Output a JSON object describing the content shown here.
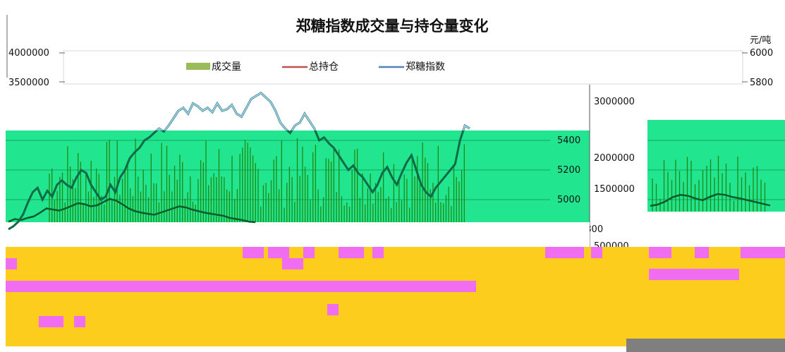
{
  "chart_data": [
    {
      "type": "bar",
      "title": "郑糖指数成交量与持仓量变化",
      "right_unit": "元/吨",
      "left_axis_ticks": [
        "4000000",
        "3500000"
      ],
      "right_axis_ticks": [
        "6000",
        "5800"
      ],
      "legend": {
        "placement": "top-center",
        "entries": [
          {
            "label": "成交量",
            "color": "#9bbb59"
          },
          {
            "label": "总持仓",
            "color": "#c0504d"
          },
          {
            "label": "郑糖指数",
            "color": "#4f81bd"
          }
        ]
      },
      "series": [
        {
          "name": "成交量",
          "color": "#9bbb59"
        },
        {
          "name": "总持仓",
          "color": "#c0504d"
        },
        {
          "name": "郑糖指数",
          "color": "#4f81bd"
        }
      ]
    },
    {
      "type": "line",
      "middle_axis_ticks": [
        "5400",
        "5200",
        "5000",
        "4800"
      ],
      "inset_axis_ticks": [
        "3000000",
        "2000000",
        "1500000",
        "500000"
      ],
      "index_series": {
        "name": "郑糖指数",
        "values": [
          4800,
          4820,
          4850,
          4900,
          4980,
          5050,
          5080,
          5000,
          5060,
          5020,
          5100,
          5130,
          5100,
          5080,
          5150,
          5200,
          5180,
          5100,
          5050,
          5000,
          5020,
          5100,
          5050,
          5150,
          5200,
          5280,
          5320,
          5350,
          5400,
          5420,
          5450,
          5480,
          5460,
          5500,
          5550,
          5600,
          5620,
          5580,
          5650,
          5630,
          5600,
          5620,
          5590,
          5650,
          5600,
          5610,
          5640,
          5580,
          5560,
          5620,
          5680,
          5700,
          5720,
          5690,
          5660,
          5600,
          5520,
          5480,
          5450,
          5500,
          5520,
          5580,
          5530,
          5480,
          5400,
          5420,
          5380,
          5350,
          5300,
          5250,
          5200,
          5230,
          5180,
          5150,
          5100,
          5050,
          5100,
          5180,
          5220,
          5150,
          5100,
          5180,
          5250,
          5300,
          5200,
          5100,
          5050,
          5020,
          5080,
          5120,
          5160,
          5200,
          5240,
          5400,
          5500,
          5480
        ]
      },
      "oi_series": {
        "name": "总持仓",
        "values": [
          650000,
          700000,
          680000,
          720000,
          750000,
          820000,
          900000,
          880000,
          860000,
          900000,
          950000,
          1000000,
          980000,
          940000,
          960000,
          1020000,
          1080000,
          1050000,
          980000,
          900000,
          850000,
          820000,
          800000,
          780000,
          820000,
          860000,
          900000,
          940000,
          920000,
          880000,
          850000,
          820000,
          800000,
          780000,
          760000,
          720000,
          700000,
          680000,
          650000,
          640000
        ]
      },
      "inset_index": [
        1050000,
        1080000,
        1150000,
        1250000,
        1300000,
        1280000,
        1220000,
        1180000,
        1260000,
        1320000,
        1300000,
        1250000,
        1220000,
        1180000,
        1140000,
        1100000,
        1060000
      ]
    }
  ]
}
